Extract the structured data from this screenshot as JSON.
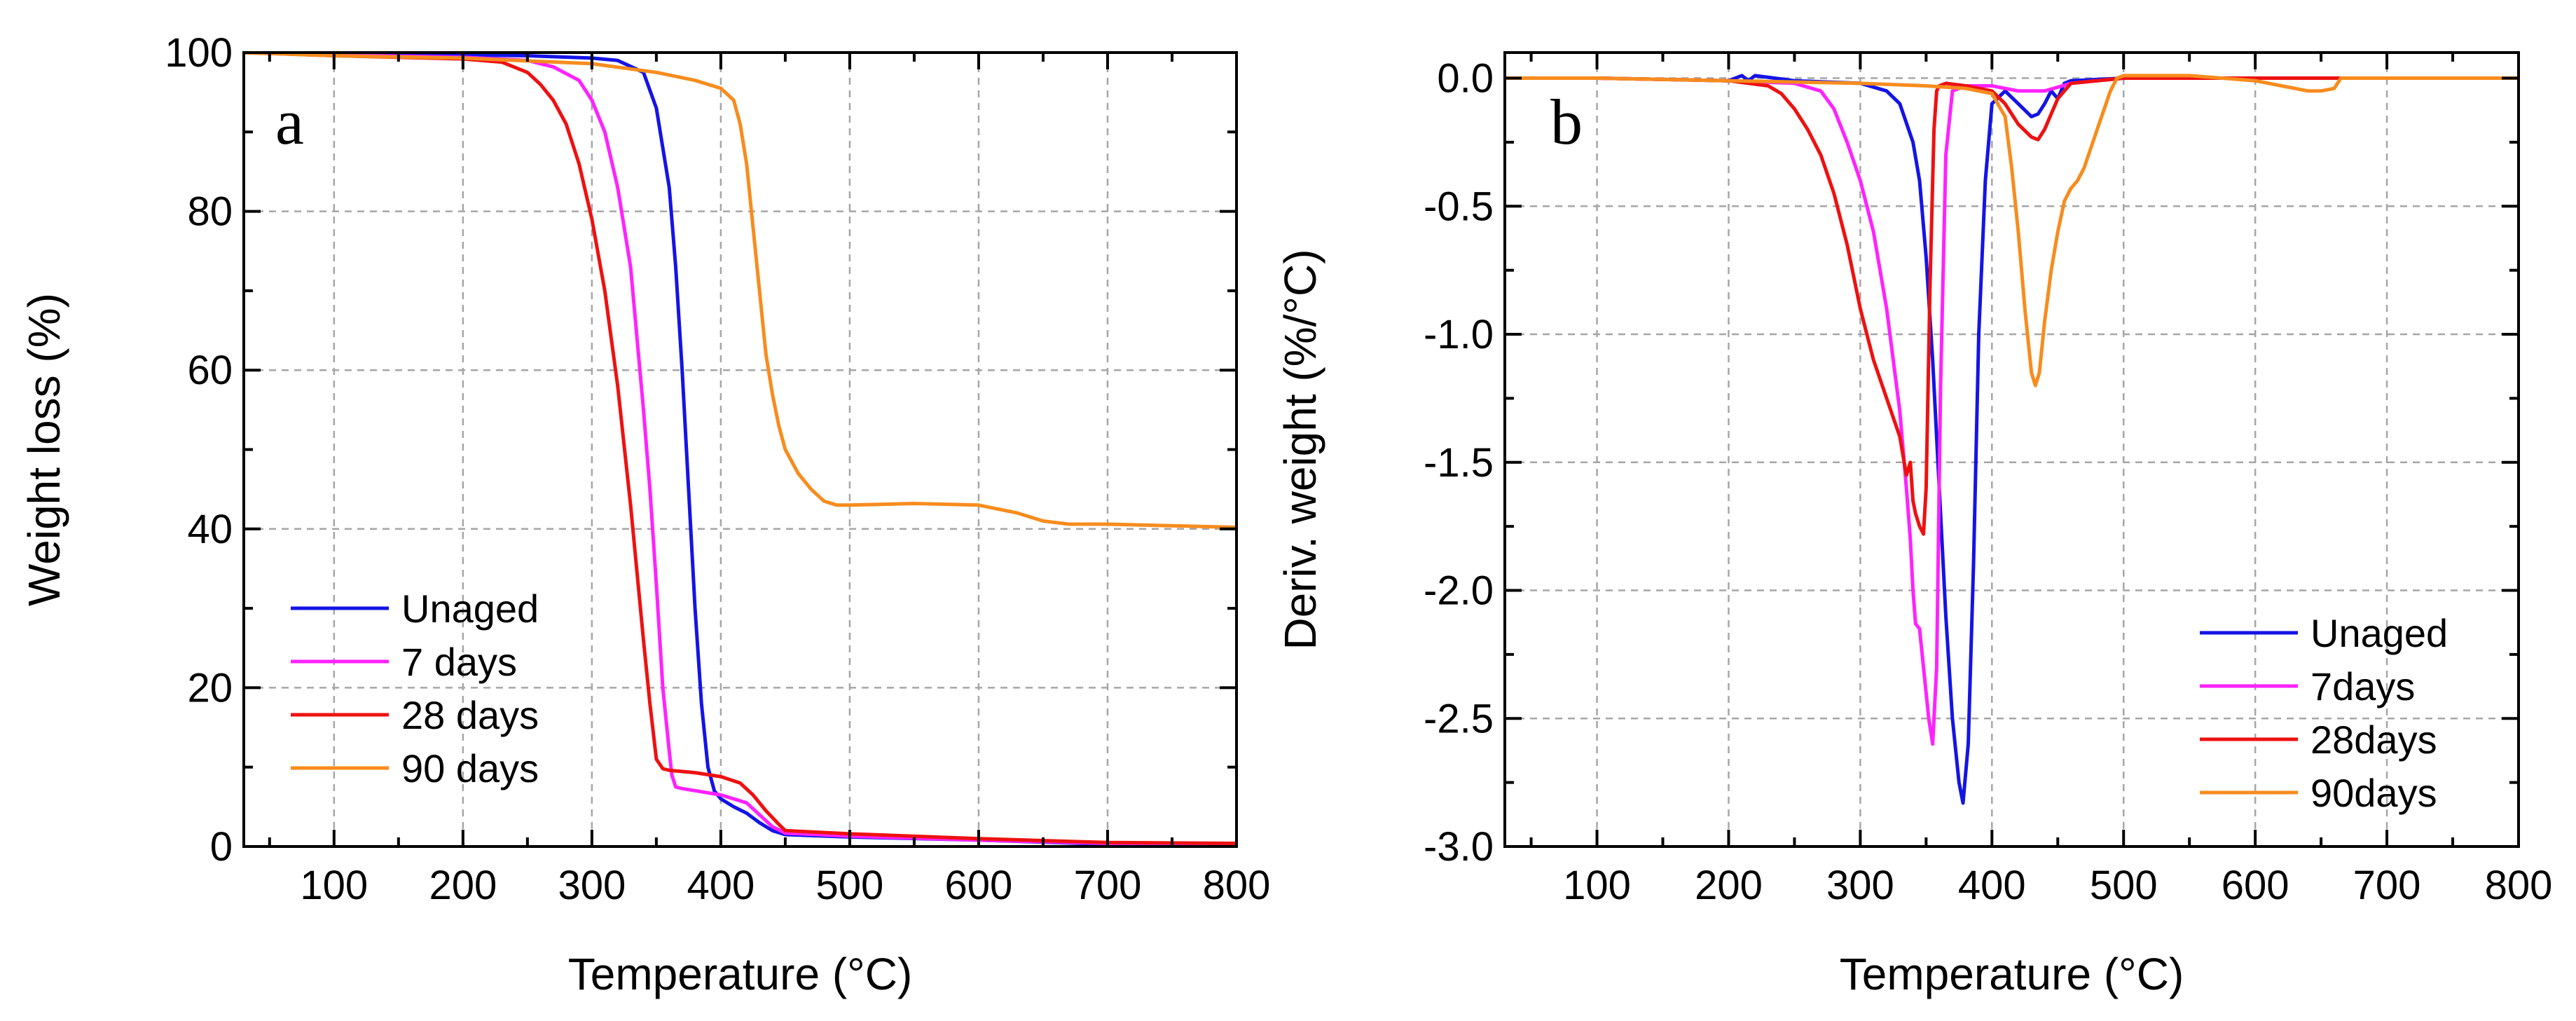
{
  "chart_data": [
    {
      "type": "line",
      "panel_label": "a",
      "xlabel": "Temperature (°C)",
      "ylabel": "Weight loss (%)",
      "xlim": [
        30,
        800
      ],
      "ylim": [
        0,
        100
      ],
      "xticks": [
        100,
        200,
        300,
        400,
        500,
        600,
        700,
        800
      ],
      "yticks": [
        0,
        20,
        40,
        60,
        80,
        100
      ],
      "grid": true,
      "legend_position": "bottom-left",
      "series": [
        {
          "name": "Unaged",
          "color": "#1414e6",
          "x": [
            30,
            100,
            200,
            250,
            300,
            320,
            340,
            350,
            360,
            365,
            370,
            375,
            380,
            385,
            390,
            395,
            400,
            410,
            420,
            430,
            440,
            450,
            500,
            600,
            700,
            800
          ],
          "y": [
            100,
            99.8,
            99.7,
            99.6,
            99.3,
            99,
            97.5,
            93,
            83,
            73,
            60,
            45,
            30,
            18,
            10,
            7,
            6,
            5,
            4.2,
            3,
            2,
            1.5,
            1.2,
            0.8,
            0.3,
            0.2
          ]
        },
        {
          "name": "7 days",
          "color": "#ff22ff",
          "x": [
            30,
            100,
            200,
            250,
            270,
            290,
            300,
            310,
            320,
            330,
            340,
            345,
            350,
            355,
            360,
            362,
            365,
            370,
            400,
            420,
            430,
            440,
            450,
            500,
            600,
            700,
            800
          ],
          "y": [
            100,
            99.7,
            99.4,
            99,
            98.2,
            96.5,
            94,
            90,
            83,
            73,
            55,
            45,
            33,
            20,
            12,
            9,
            7.5,
            7.3,
            6.5,
            5.5,
            4,
            2.5,
            1.7,
            1.3,
            0.8,
            0.4,
            0.3
          ]
        },
        {
          "name": "28 days",
          "color": "#ee1111",
          "x": [
            30,
            100,
            200,
            230,
            250,
            260,
            270,
            280,
            290,
            300,
            310,
            320,
            330,
            340,
            345,
            350,
            355,
            360,
            380,
            400,
            415,
            425,
            435,
            445,
            450,
            500,
            600,
            700,
            800
          ],
          "y": [
            100,
            99.6,
            99.2,
            98.8,
            97.5,
            96,
            94,
            91,
            86,
            79,
            70,
            58,
            43,
            26,
            18,
            11,
            9.8,
            9.6,
            9.3,
            8.8,
            8,
            6.5,
            4.5,
            2.8,
            2,
            1.6,
            1,
            0.5,
            0.4
          ]
        },
        {
          "name": "90 days",
          "color": "#f78c1e",
          "x": [
            30,
            100,
            200,
            300,
            350,
            380,
            400,
            410,
            415,
            420,
            425,
            430,
            435,
            440,
            445,
            450,
            460,
            470,
            480,
            490,
            500,
            550,
            600,
            630,
            650,
            670,
            700,
            750,
            800
          ],
          "y": [
            100,
            99.6,
            99.3,
            98.6,
            97.5,
            96.5,
            95.5,
            94,
            91,
            86,
            78,
            70,
            62,
            57,
            53,
            50,
            47,
            45,
            43.5,
            43,
            43,
            43.2,
            43,
            42,
            41,
            40.6,
            40.6,
            40.4,
            40.2
          ]
        }
      ]
    },
    {
      "type": "line",
      "panel_label": "b",
      "xlabel": "Temperature (°C)",
      "ylabel": "Deriv. weight (%/°C)",
      "xlim": [
        30,
        800
      ],
      "ylim": [
        -3.0,
        0.1
      ],
      "xticks": [
        100,
        200,
        300,
        400,
        500,
        600,
        700,
        800
      ],
      "yticks": [
        0.0,
        -0.5,
        -1.0,
        -1.5,
        -2.0,
        -2.5,
        -3.0
      ],
      "ytick_labels": [
        "0.0",
        "-0.5",
        "-1.0",
        "-1.5",
        "-2.0",
        "-2.5",
        "-3.0"
      ],
      "grid": true,
      "legend_position": "bottom-right",
      "series": [
        {
          "name": "Unaged",
          "color": "#1414e6",
          "x": [
            30,
            100,
            200,
            210,
            215,
            220,
            250,
            300,
            320,
            330,
            340,
            345,
            350,
            355,
            360,
            365,
            370,
            375,
            378,
            382,
            386,
            390,
            395,
            400,
            410,
            420,
            430,
            435,
            440,
            445,
            450,
            455,
            460,
            500,
            600,
            700,
            800
          ],
          "y": [
            0,
            0,
            -0.01,
            0.01,
            -0.01,
            0.01,
            -0.01,
            -0.02,
            -0.05,
            -0.1,
            -0.25,
            -0.4,
            -0.7,
            -1.1,
            -1.6,
            -2.1,
            -2.5,
            -2.75,
            -2.83,
            -2.6,
            -1.9,
            -1.0,
            -0.4,
            -0.1,
            -0.05,
            -0.1,
            -0.15,
            -0.14,
            -0.1,
            -0.05,
            -0.08,
            -0.02,
            -0.01,
            0,
            0,
            0,
            0
          ]
        },
        {
          "name": "7days",
          "color": "#ff22ff",
          "x": [
            30,
            100,
            200,
            250,
            270,
            280,
            290,
            300,
            310,
            320,
            330,
            335,
            338,
            340,
            342,
            345,
            348,
            352,
            355,
            358,
            361,
            365,
            370,
            380,
            400,
            420,
            440,
            460,
            500,
            600,
            800
          ],
          "y": [
            0,
            0,
            -0.01,
            -0.02,
            -0.05,
            -0.12,
            -0.25,
            -0.4,
            -0.6,
            -0.9,
            -1.3,
            -1.6,
            -1.8,
            -2.0,
            -2.13,
            -2.15,
            -2.3,
            -2.5,
            -2.6,
            -2.3,
            -1.2,
            -0.3,
            -0.05,
            -0.03,
            -0.03,
            -0.05,
            -0.05,
            -0.02,
            0,
            0,
            0
          ]
        },
        {
          "name": "28days",
          "color": "#ee1111",
          "x": [
            30,
            100,
            200,
            230,
            240,
            250,
            260,
            270,
            280,
            290,
            300,
            310,
            320,
            330,
            335,
            338,
            340,
            342,
            345,
            348,
            350,
            353,
            356,
            358,
            360,
            365,
            380,
            400,
            410,
            420,
            430,
            435,
            440,
            450,
            460,
            500,
            800
          ],
          "y": [
            0,
            0,
            -0.01,
            -0.03,
            -0.06,
            -0.12,
            -0.2,
            -0.3,
            -0.45,
            -0.65,
            -0.9,
            -1.1,
            -1.25,
            -1.4,
            -1.55,
            -1.5,
            -1.65,
            -1.7,
            -1.75,
            -1.78,
            -1.6,
            -0.8,
            -0.2,
            -0.05,
            -0.03,
            -0.02,
            -0.03,
            -0.05,
            -0.1,
            -0.18,
            -0.23,
            -0.24,
            -0.2,
            -0.08,
            -0.02,
            0,
            0
          ]
        },
        {
          "name": "90days",
          "color": "#f78c1e",
          "x": [
            30,
            100,
            200,
            300,
            350,
            380,
            400,
            410,
            415,
            420,
            425,
            430,
            433,
            436,
            440,
            445,
            450,
            455,
            460,
            465,
            470,
            480,
            490,
            495,
            500,
            550,
            600,
            620,
            640,
            650,
            660,
            665,
            700,
            800
          ],
          "y": [
            0,
            0,
            -0.01,
            -0.02,
            -0.03,
            -0.04,
            -0.06,
            -0.15,
            -0.35,
            -0.6,
            -0.9,
            -1.15,
            -1.2,
            -1.15,
            -0.95,
            -0.75,
            -0.6,
            -0.48,
            -0.43,
            -0.4,
            -0.35,
            -0.2,
            -0.05,
            0,
            0.01,
            0.01,
            -0.01,
            -0.03,
            -0.05,
            -0.05,
            -0.04,
            0,
            0,
            0
          ]
        }
      ]
    }
  ]
}
